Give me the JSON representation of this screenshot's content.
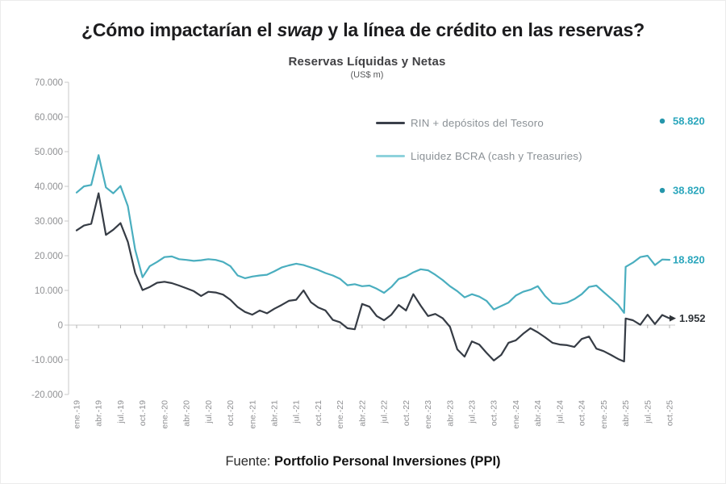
{
  "title": {
    "prefix": "¿Cómo impactarían el ",
    "italic": "swap",
    "suffix": " y la línea de crédito en las reservas?"
  },
  "footer": {
    "prefix": "Fuente: ",
    "bold": "Portfolio Personal Inversiones (PPI)"
  },
  "colors": {
    "dark_series": "#363c45",
    "blue_series": "#4aaebf",
    "annotation_teal": "#2aa6bc",
    "annotation_dark": "#2e3338",
    "axis_text": "#8f9093",
    "axis_line": "#c9c9c9"
  },
  "chart_data": {
    "type": "line",
    "title": "Reservas Líquidas y Netas",
    "subtitle": "(US$ m)",
    "unit": "US$ m",
    "grid": "zero-line-only",
    "legend_position": "top-right-inside",
    "y_axis": {
      "min": -20000,
      "max": 70000,
      "tick_step": 10000,
      "tick_labels": [
        "70.000",
        "60.000",
        "50.000",
        "40.000",
        "30.000",
        "20.000",
        "10.000",
        "0",
        "-10.000",
        "-20.000"
      ],
      "tick_values": [
        70000,
        60000,
        50000,
        40000,
        30000,
        20000,
        10000,
        0,
        -10000,
        -20000
      ]
    },
    "x_axis": {
      "description": "monthly index 0 = ene-19 ... 81 = oct-25, quarterly ticks",
      "tick_month_indices": [
        0,
        3,
        6,
        9,
        12,
        15,
        18,
        21,
        24,
        27,
        30,
        33,
        36,
        39,
        42,
        45,
        48,
        51,
        54,
        57,
        60,
        63,
        66,
        69,
        72,
        75,
        78,
        81
      ],
      "tick_labels": [
        "ene.-19",
        "abr.-19",
        "jul.-19",
        "oct.-19",
        "ene.-20",
        "abr.-20",
        "jul.-20",
        "oct.-20",
        "ene.-21",
        "abr.-21",
        "jul.-21",
        "oct.-21",
        "ene.-22",
        "abr.-22",
        "jul.-22",
        "oct.-22",
        "ene.-23",
        "abr.-23",
        "jul.-23",
        "oct.-23",
        "ene.-24",
        "abr.-24",
        "jul.-24",
        "oct.-24",
        "ene.-25",
        "abr.-25",
        "jul.-25",
        "oct.-25"
      ]
    },
    "legend": [
      {
        "label": "RIN + depósitos del Tesoro",
        "swatch": "#3a404a"
      },
      {
        "label": "Liquidez BCRA (cash y Treasuries)",
        "swatch": "#8ed2dc"
      }
    ],
    "series": [
      {
        "name": "RIN + depósitos del Tesoro",
        "color": "#363c45",
        "end_label": "1.952",
        "points": [
          [
            0,
            27300
          ],
          [
            1,
            28700
          ],
          [
            2,
            29200
          ],
          [
            3,
            38000
          ],
          [
            4,
            26000
          ],
          [
            5,
            27500
          ],
          [
            6,
            29400
          ],
          [
            7,
            24000
          ],
          [
            8,
            15000
          ],
          [
            9,
            10100
          ],
          [
            10,
            11000
          ],
          [
            11,
            12200
          ],
          [
            12,
            12500
          ],
          [
            13,
            12100
          ],
          [
            14,
            11400
          ],
          [
            15,
            10600
          ],
          [
            16,
            9800
          ],
          [
            17,
            8400
          ],
          [
            18,
            9600
          ],
          [
            19,
            9400
          ],
          [
            20,
            8800
          ],
          [
            21,
            7300
          ],
          [
            22,
            5200
          ],
          [
            23,
            3800
          ],
          [
            24,
            3000
          ],
          [
            25,
            4200
          ],
          [
            26,
            3400
          ],
          [
            27,
            4700
          ],
          [
            28,
            5800
          ],
          [
            29,
            7000
          ],
          [
            30,
            7300
          ],
          [
            31,
            10000
          ],
          [
            32,
            6600
          ],
          [
            33,
            5100
          ],
          [
            34,
            4200
          ],
          [
            35,
            1500
          ],
          [
            36,
            800
          ],
          [
            37,
            -900
          ],
          [
            38,
            -1200
          ],
          [
            39,
            6100
          ],
          [
            40,
            5300
          ],
          [
            41,
            2600
          ],
          [
            42,
            1400
          ],
          [
            43,
            3000
          ],
          [
            44,
            5800
          ],
          [
            45,
            4200
          ],
          [
            46,
            8900
          ],
          [
            47,
            5600
          ],
          [
            48,
            2600
          ],
          [
            49,
            3200
          ],
          [
            50,
            2000
          ],
          [
            51,
            -500
          ],
          [
            52,
            -7000
          ],
          [
            53,
            -9100
          ],
          [
            54,
            -4700
          ],
          [
            55,
            -5600
          ],
          [
            56,
            -8000
          ],
          [
            57,
            -10200
          ],
          [
            58,
            -8600
          ],
          [
            59,
            -5100
          ],
          [
            60,
            -4400
          ],
          [
            61,
            -2500
          ],
          [
            62,
            -900
          ],
          [
            63,
            -2100
          ],
          [
            64,
            -3500
          ],
          [
            65,
            -5100
          ],
          [
            66,
            -5600
          ],
          [
            67,
            -5800
          ],
          [
            68,
            -6300
          ],
          [
            69,
            -4000
          ],
          [
            70,
            -3300
          ],
          [
            71,
            -6800
          ],
          [
            72,
            -7500
          ],
          [
            73,
            -8600
          ],
          [
            74,
            -9800
          ],
          [
            74.8,
            -10500
          ],
          [
            75,
            1900
          ],
          [
            76,
            1400
          ],
          [
            77,
            100
          ],
          [
            78,
            3000
          ],
          [
            79,
            300
          ],
          [
            80,
            2900
          ],
          [
            81,
            1952
          ]
        ]
      },
      {
        "name": "Liquidez BCRA (cash y Treasuries)",
        "color": "#4aaebf",
        "end_label": "18.820",
        "points": [
          [
            0,
            38200
          ],
          [
            1,
            40000
          ],
          [
            2,
            40400
          ],
          [
            3,
            49000
          ],
          [
            4,
            39700
          ],
          [
            5,
            38000
          ],
          [
            6,
            40100
          ],
          [
            7,
            34300
          ],
          [
            8,
            21700
          ],
          [
            9,
            13800
          ],
          [
            10,
            17000
          ],
          [
            11,
            18200
          ],
          [
            12,
            19600
          ],
          [
            13,
            19800
          ],
          [
            14,
            19000
          ],
          [
            15,
            18800
          ],
          [
            16,
            18500
          ],
          [
            17,
            18700
          ],
          [
            18,
            19000
          ],
          [
            19,
            18800
          ],
          [
            20,
            18200
          ],
          [
            21,
            17000
          ],
          [
            22,
            14300
          ],
          [
            23,
            13500
          ],
          [
            24,
            14000
          ],
          [
            25,
            14300
          ],
          [
            26,
            14500
          ],
          [
            27,
            15500
          ],
          [
            28,
            16600
          ],
          [
            29,
            17200
          ],
          [
            30,
            17700
          ],
          [
            31,
            17300
          ],
          [
            32,
            16600
          ],
          [
            33,
            15900
          ],
          [
            34,
            15000
          ],
          [
            35,
            14300
          ],
          [
            36,
            13300
          ],
          [
            37,
            11500
          ],
          [
            38,
            11800
          ],
          [
            39,
            11200
          ],
          [
            40,
            11400
          ],
          [
            41,
            10500
          ],
          [
            42,
            9300
          ],
          [
            43,
            11000
          ],
          [
            44,
            13300
          ],
          [
            45,
            14000
          ],
          [
            46,
            15200
          ],
          [
            47,
            16100
          ],
          [
            48,
            15800
          ],
          [
            49,
            14500
          ],
          [
            50,
            13000
          ],
          [
            51,
            11200
          ],
          [
            52,
            9800
          ],
          [
            53,
            8000
          ],
          [
            54,
            8900
          ],
          [
            55,
            8200
          ],
          [
            56,
            7000
          ],
          [
            57,
            4500
          ],
          [
            58,
            5500
          ],
          [
            59,
            6500
          ],
          [
            60,
            8500
          ],
          [
            61,
            9600
          ],
          [
            62,
            10200
          ],
          [
            63,
            11200
          ],
          [
            64,
            8400
          ],
          [
            65,
            6300
          ],
          [
            66,
            6100
          ],
          [
            67,
            6500
          ],
          [
            68,
            7500
          ],
          [
            69,
            8900
          ],
          [
            70,
            11000
          ],
          [
            71,
            11400
          ],
          [
            72,
            9500
          ],
          [
            73,
            7700
          ],
          [
            74,
            5800
          ],
          [
            74.8,
            3500
          ],
          [
            75,
            16800
          ],
          [
            76,
            18000
          ],
          [
            77,
            19600
          ],
          [
            78,
            20000
          ],
          [
            79,
            17300
          ],
          [
            80,
            18900
          ],
          [
            81,
            18820
          ]
        ]
      }
    ],
    "annotations": [
      {
        "label": "58.820",
        "value": 58820,
        "color": "#2aa6bc",
        "dot": true,
        "meaning": "projected reserves with swap + credit line"
      },
      {
        "label": "38.820",
        "value": 38820,
        "color": "#2aa6bc",
        "dot": true,
        "meaning": "projected reserves with swap"
      },
      {
        "label": "18.820",
        "value": 18820,
        "color": "#2aa6bc",
        "dot": false,
        "meaning": "current Liquidez BCRA"
      },
      {
        "label": "1.952",
        "value": 1952,
        "color": "#2e3338",
        "dot": false,
        "arrow": true,
        "meaning": "current RIN + depósitos del Tesoro"
      }
    ]
  }
}
